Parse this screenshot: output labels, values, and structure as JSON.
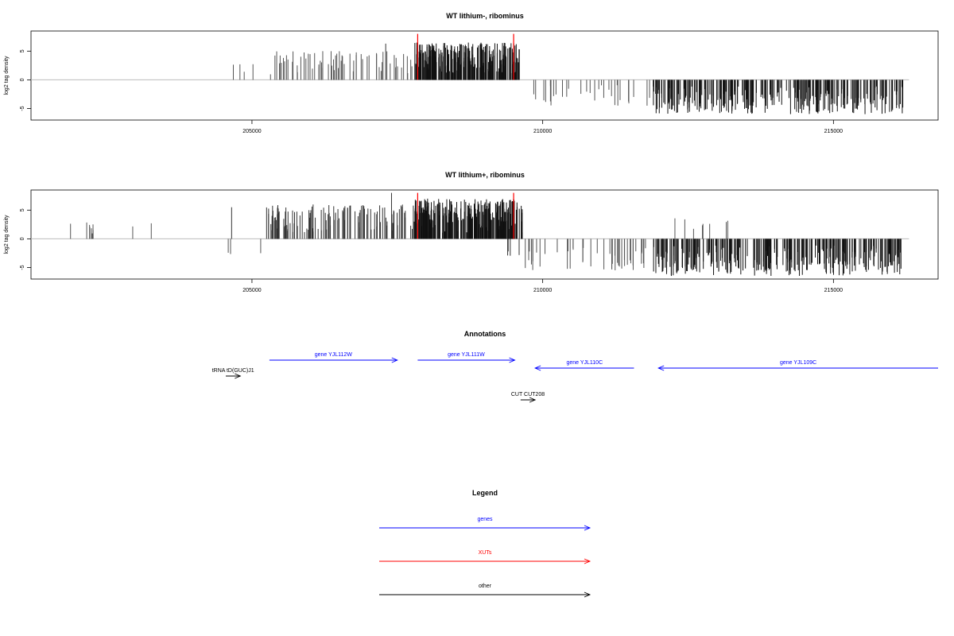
{
  "chart_data": [
    {
      "type": "bar",
      "title": "WT lithium-, ribominus",
      "ylabel": "log2 tag density",
      "xlabel": "",
      "xlim": [
        201200,
        216800
      ],
      "ylim": [
        -7,
        8.5
      ],
      "xticks": [
        205000,
        210000,
        215000
      ],
      "yticks": [
        -5,
        0,
        5
      ],
      "grid": false,
      "baseline": {
        "from": 201200,
        "to": 216300,
        "color": "#bbbbbb"
      },
      "markers": {
        "positions": [
          207850,
          209500
        ],
        "color": "#ff0000",
        "height": 8
      },
      "seed": 7,
      "segments": [
        {
          "from": 204650,
          "to": 205250,
          "sign": 1,
          "count": 4,
          "min": 1.2,
          "max": 2.8,
          "color": "#555555"
        },
        {
          "from": 205250,
          "to": 207800,
          "sign": 1,
          "count": 68,
          "min": 0.8,
          "max": 5.0,
          "color": "#555555"
        },
        {
          "from": 207300,
          "to": 207300,
          "sign": 1,
          "count": 1,
          "min": 6.3,
          "max": 6.3,
          "color": "#333333"
        },
        {
          "from": 207800,
          "to": 209600,
          "sign": 1,
          "count": 260,
          "min": 1.0,
          "max": 6.5,
          "color": "#111111"
        },
        {
          "from": 209800,
          "to": 211900,
          "sign": -1,
          "count": 30,
          "min": 0.5,
          "max": 4.5,
          "color": "#555555"
        },
        {
          "from": 211900,
          "to": 216200,
          "sign": -1,
          "count": 280,
          "min": 1.0,
          "max": 6.0,
          "color": "#111111"
        }
      ]
    },
    {
      "type": "bar",
      "title": "WT lithium+, ribominus",
      "ylabel": "log2 tag density",
      "xlabel": "",
      "xlim": [
        201200,
        216800
      ],
      "ylim": [
        -7,
        8.5
      ],
      "xticks": [
        205000,
        210000,
        215000
      ],
      "yticks": [
        -5,
        0,
        5
      ],
      "grid": false,
      "baseline": {
        "from": 201200,
        "to": 216300,
        "color": "#bbbbbb"
      },
      "markers": {
        "positions": [
          207850,
          209500
        ],
        "color": "#ff0000",
        "height": 8
      },
      "seed": 23,
      "segments": [
        {
          "from": 201700,
          "to": 203900,
          "sign": 1,
          "count": 10,
          "min": 0.7,
          "max": 3.0,
          "color": "#555555"
        },
        {
          "from": 204550,
          "to": 204650,
          "sign": -1,
          "count": 2,
          "min": 2.0,
          "max": 2.7,
          "color": "#555555"
        },
        {
          "from": 204650,
          "to": 204750,
          "sign": 1,
          "count": 1,
          "min": 5.5,
          "max": 5.5,
          "color": "#333333"
        },
        {
          "from": 205150,
          "to": 205200,
          "sign": -1,
          "count": 1,
          "min": 2.5,
          "max": 2.5,
          "color": "#555555"
        },
        {
          "from": 205250,
          "to": 207800,
          "sign": 1,
          "count": 130,
          "min": 1.0,
          "max": 6.0,
          "color": "#333333"
        },
        {
          "from": 207400,
          "to": 207400,
          "sign": 1,
          "count": 1,
          "min": 8.0,
          "max": 8.0,
          "color": "#333333"
        },
        {
          "from": 207800,
          "to": 209650,
          "sign": 1,
          "count": 280,
          "min": 1.0,
          "max": 7.0,
          "color": "#111111"
        },
        {
          "from": 209350,
          "to": 209650,
          "sign": -1,
          "count": 4,
          "min": 1.5,
          "max": 3.0,
          "color": "#333333"
        },
        {
          "from": 209700,
          "to": 211900,
          "sign": -1,
          "count": 45,
          "min": 0.8,
          "max": 5.5,
          "color": "#555555"
        },
        {
          "from": 211900,
          "to": 216200,
          "sign": -1,
          "count": 300,
          "min": 1.0,
          "max": 6.5,
          "color": "#111111"
        },
        {
          "from": 212000,
          "to": 213500,
          "sign": 1,
          "count": 8,
          "min": 1.0,
          "max": 3.8,
          "color": "#555555"
        }
      ]
    }
  ],
  "annotations": {
    "title": "Annotations",
    "items": [
      {
        "label": "gene YJL112W",
        "from": 205300,
        "to": 207500,
        "direction": "right",
        "row": 1,
        "color": "#0000ff"
      },
      {
        "label": "gene YJL111W",
        "from": 207850,
        "to": 209520,
        "direction": "right",
        "row": 1,
        "color": "#0000ff"
      },
      {
        "label": "gene YJL110C",
        "from": 209870,
        "to": 211570,
        "direction": "left",
        "row": 2,
        "color": "#0000ff"
      },
      {
        "label": "gene YJL109C",
        "from": 211990,
        "to": 216800,
        "direction": "left",
        "row": 2,
        "color": "#0000ff"
      },
      {
        "label": "tRNA tD(GUC)J1",
        "from": 204550,
        "to": 204800,
        "direction": "right",
        "row": 3,
        "color": "#000000"
      },
      {
        "label": "CUT CUT208",
        "from": 209620,
        "to": 209870,
        "direction": "right",
        "row": 6,
        "color": "#000000"
      }
    ]
  },
  "legend": {
    "title": "Legend",
    "items": [
      {
        "label": "genes",
        "color": "#0000ff"
      },
      {
        "label": "XUTs",
        "color": "#ff0000"
      },
      {
        "label": "other",
        "color": "#000000"
      }
    ]
  }
}
